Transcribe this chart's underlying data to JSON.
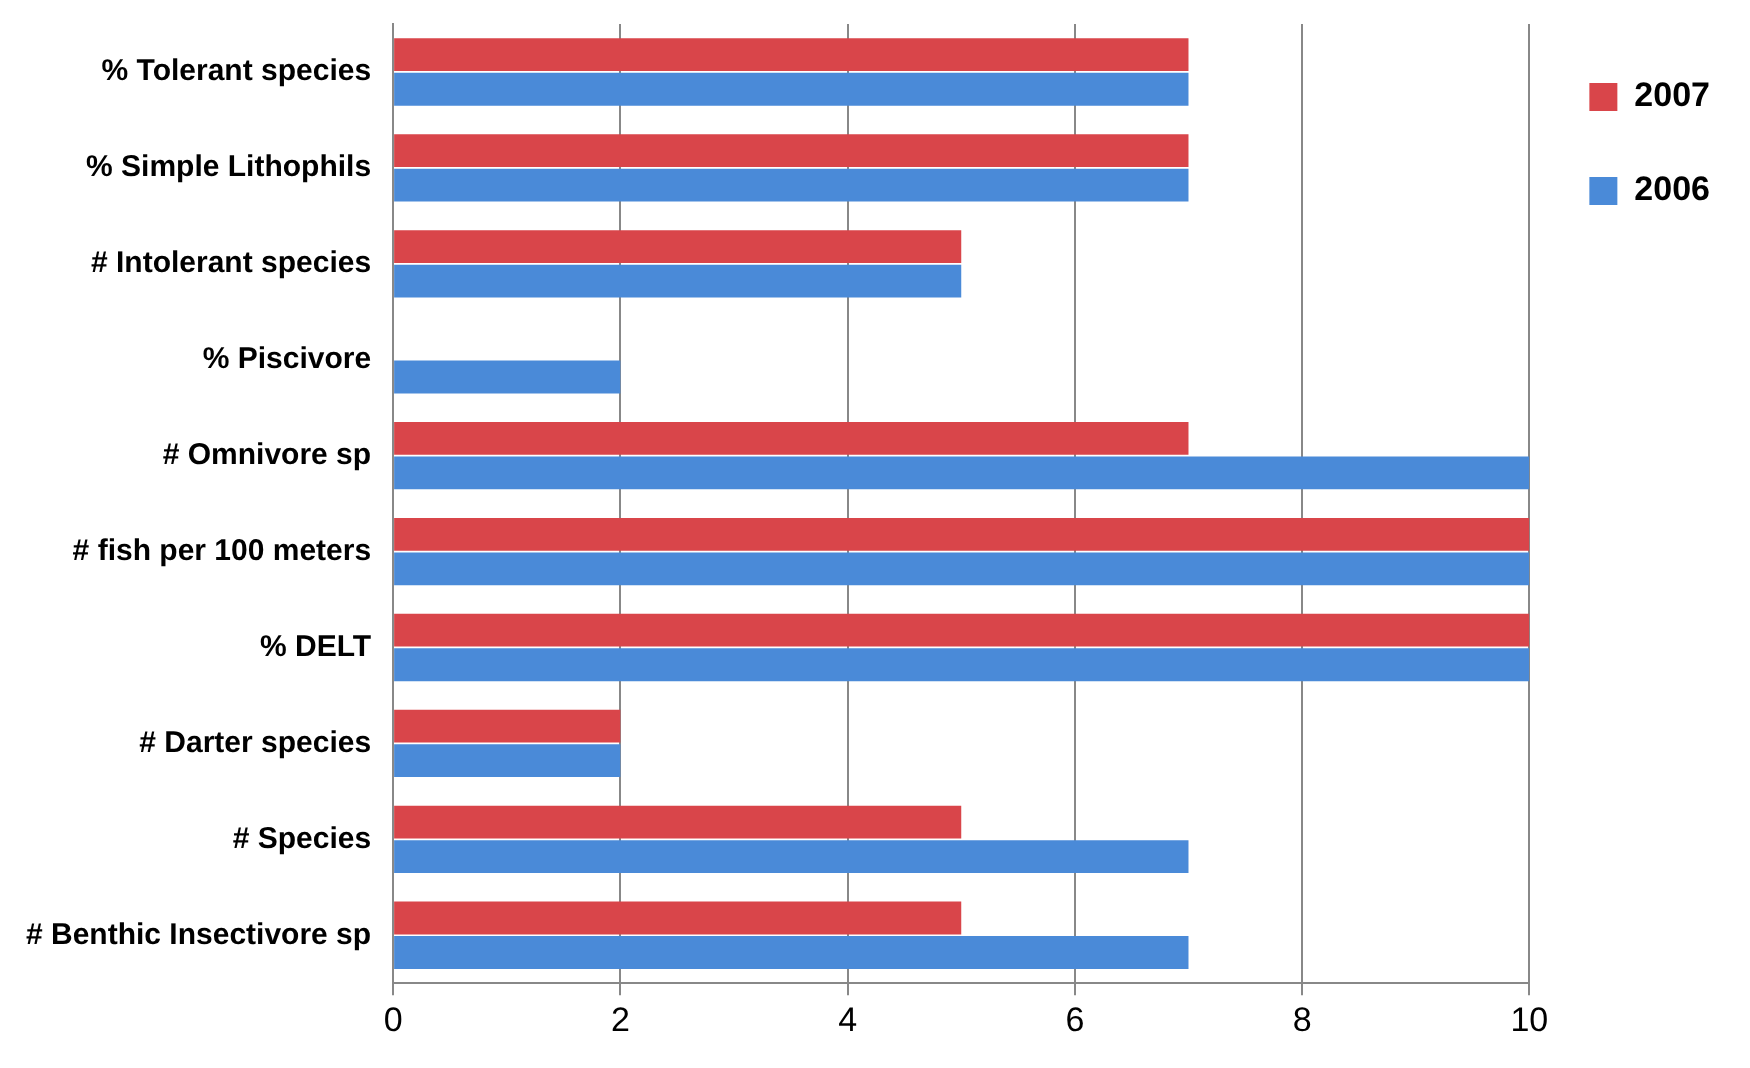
{
  "chart_data": {
    "type": "bar",
    "orientation": "horizontal",
    "categories": [
      "% Tolerant species",
      "% Simple Lithophils",
      "# Intolerant species",
      "% Piscivore",
      "# Omnivore sp",
      "# fish per 100 meters",
      "% DELT",
      "# Darter species",
      "# Species",
      "# Benthic Insectivore sp"
    ],
    "series": [
      {
        "name": "2007",
        "color": "#d9454a",
        "values": [
          7,
          7,
          5,
          0,
          7,
          10,
          10,
          2,
          5,
          5
        ]
      },
      {
        "name": "2006",
        "color": "#4a8ad8",
        "values": [
          7,
          7,
          5,
          2,
          10,
          10,
          10,
          2,
          7,
          7
        ]
      }
    ],
    "xlim": [
      0,
      10
    ],
    "xticks": [
      0,
      2,
      4,
      6,
      8,
      10
    ],
    "grid": "x",
    "legend": "top right"
  }
}
